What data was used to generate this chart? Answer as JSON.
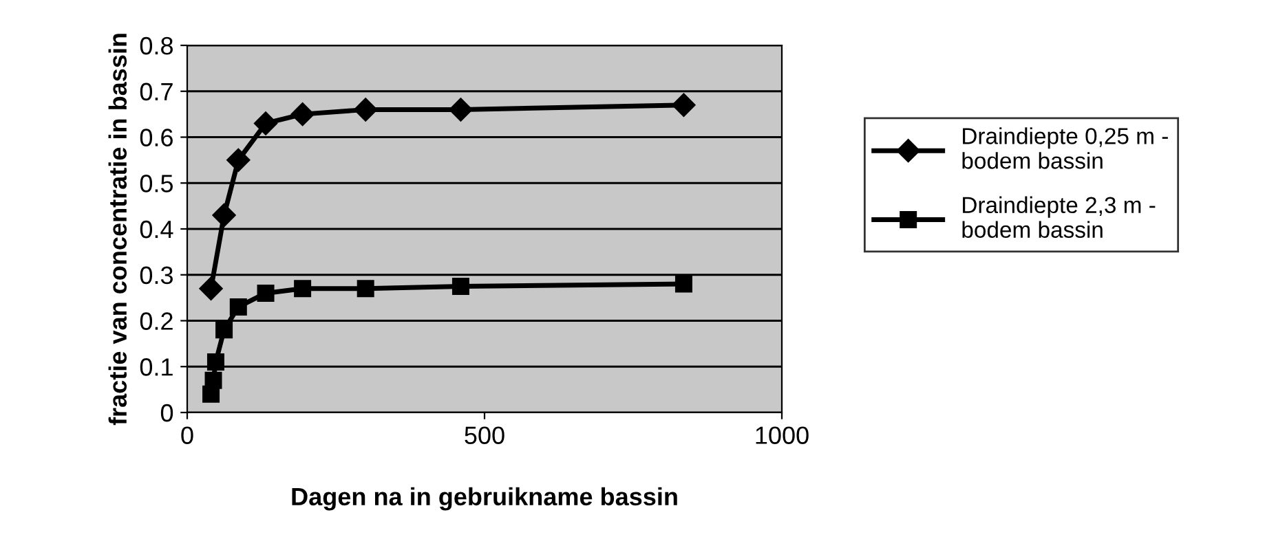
{
  "chart_data": {
    "type": "line",
    "xlabel": "Dagen na in gebruikname bassin",
    "ylabel": "fractie van concentratie in bassin",
    "xlim": [
      0,
      1000
    ],
    "xticks": [
      0,
      500,
      1000
    ],
    "ylim": [
      0,
      0.8
    ],
    "yticks": [
      0,
      0.1,
      0.2,
      0.3,
      0.4,
      0.5,
      0.6,
      0.7,
      0.8
    ],
    "grid": "y",
    "legend": "right",
    "series": [
      {
        "name": "Draindiepte 0,25 m - bodem bassin",
        "color": "#000000",
        "marker": "diamond",
        "x": [
          40,
          62,
          86,
          132,
          194,
          300,
          460,
          835
        ],
        "values": [
          0.27,
          0.43,
          0.55,
          0.63,
          0.65,
          0.66,
          0.66,
          0.67
        ]
      },
      {
        "name": "Draindiepte 2,3 m - bodem bassin",
        "color": "#000000",
        "marker": "square",
        "x": [
          40,
          44,
          48,
          62,
          86,
          132,
          194,
          300,
          460,
          835
        ],
        "values": [
          0.04,
          0.07,
          0.11,
          0.18,
          0.23,
          0.26,
          0.27,
          0.27,
          0.275,
          0.28
        ]
      }
    ]
  }
}
